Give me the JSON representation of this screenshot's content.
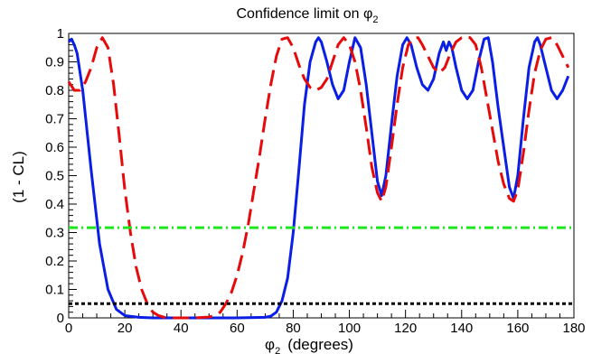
{
  "chart_data": {
    "type": "line",
    "title": {
      "text": "Confidence limit on φ",
      "sub": "2"
    },
    "xlabel": {
      "symbol": "φ",
      "sub": "2",
      "rest": "(degrees)"
    },
    "ylabel": "(1 - CL)",
    "xlim": [
      0,
      180
    ],
    "ylim": [
      0,
      1
    ],
    "xticks": [
      0,
      20,
      40,
      60,
      80,
      100,
      120,
      140,
      160,
      180
    ],
    "yticks": [
      0,
      0.1,
      0.2,
      0.3,
      0.4,
      0.5,
      0.6,
      0.7,
      0.8,
      0.9,
      1
    ],
    "ytick_labels": [
      "0",
      "0.1",
      "0.2",
      "0.3",
      "0.4",
      "0.5",
      "0.6",
      "0.7",
      "0.8",
      "0.9",
      "1"
    ],
    "grid": false,
    "series": [
      {
        "style": "solid",
        "color": "#0a1ee6",
        "x": [
          0,
          1,
          2,
          3,
          5,
          8,
          11,
          14,
          17,
          20,
          25,
          30,
          40,
          50,
          60,
          70,
          72,
          74,
          76,
          78,
          80,
          82,
          84,
          86,
          88,
          89,
          90,
          92,
          94,
          96,
          98,
          100,
          102,
          104,
          106,
          108,
          110,
          111.5,
          113,
          115,
          117,
          119,
          120.5,
          122,
          124,
          126,
          128,
          130,
          132,
          133.5,
          134.5,
          135.5,
          136.5,
          138,
          140,
          142,
          144,
          146,
          148,
          149.5,
          151,
          153,
          155,
          157,
          158.5,
          160,
          162,
          164,
          166,
          167,
          168,
          170,
          172,
          174,
          176,
          178
        ],
        "y": [
          0.97,
          0.98,
          0.96,
          0.93,
          0.8,
          0.52,
          0.26,
          0.1,
          0.03,
          0.008,
          0.002,
          0,
          0,
          0,
          0,
          0.002,
          0.006,
          0.02,
          0.06,
          0.14,
          0.3,
          0.52,
          0.75,
          0.9,
          0.97,
          0.985,
          0.97,
          0.9,
          0.82,
          0.77,
          0.8,
          0.9,
          0.985,
          0.95,
          0.82,
          0.65,
          0.48,
          0.43,
          0.5,
          0.68,
          0.85,
          0.96,
          0.985,
          0.96,
          0.88,
          0.82,
          0.8,
          0.84,
          0.93,
          0.97,
          0.94,
          0.97,
          0.95,
          0.88,
          0.8,
          0.77,
          0.8,
          0.9,
          0.98,
          0.985,
          0.9,
          0.74,
          0.6,
          0.46,
          0.42,
          0.5,
          0.7,
          0.88,
          0.97,
          0.985,
          0.96,
          0.88,
          0.8,
          0.77,
          0.8,
          0.85
        ]
      },
      {
        "style": "dashed",
        "color": "#e60a0a",
        "x": [
          0,
          2,
          4,
          6,
          8,
          10,
          12,
          14,
          16,
          18,
          20,
          22,
          24,
          26,
          28,
          30,
          32,
          34,
          36,
          38,
          40,
          45,
          50,
          52,
          54,
          56,
          58,
          60,
          62,
          64,
          66,
          68,
          70,
          72,
          74,
          76,
          78,
          80,
          82,
          84,
          86,
          88,
          90,
          92,
          94,
          96,
          98,
          100,
          102,
          104,
          106,
          108,
          110,
          111.5,
          113,
          115,
          117,
          119,
          121,
          123,
          124.5,
          126,
          128,
          130,
          132,
          134,
          136,
          138,
          140,
          141.5,
          143,
          145,
          147,
          149,
          151,
          153,
          155,
          157,
          158.5,
          160,
          162,
          164,
          166,
          168,
          170,
          172,
          174,
          176,
          178
        ],
        "y": [
          0.83,
          0.8,
          0.8,
          0.83,
          0.88,
          0.95,
          0.985,
          0.95,
          0.82,
          0.64,
          0.45,
          0.3,
          0.18,
          0.1,
          0.05,
          0.02,
          0.008,
          0.002,
          0,
          0,
          0,
          0,
          0.003,
          0.008,
          0.02,
          0.05,
          0.09,
          0.15,
          0.23,
          0.33,
          0.45,
          0.57,
          0.7,
          0.82,
          0.92,
          0.98,
          0.985,
          0.95,
          0.89,
          0.84,
          0.81,
          0.8,
          0.81,
          0.84,
          0.9,
          0.96,
          0.985,
          0.96,
          0.9,
          0.8,
          0.67,
          0.53,
          0.44,
          0.41,
          0.46,
          0.6,
          0.75,
          0.88,
          0.96,
          0.985,
          0.985,
          0.96,
          0.92,
          0.88,
          0.86,
          0.88,
          0.93,
          0.97,
          0.985,
          0.99,
          0.985,
          0.96,
          0.88,
          0.77,
          0.66,
          0.55,
          0.47,
          0.42,
          0.41,
          0.45,
          0.58,
          0.73,
          0.86,
          0.94,
          0.98,
          0.985,
          0.96,
          0.92,
          0.88
        ]
      },
      {
        "style": "dashdot",
        "color": "#1ee61e",
        "x": [
          0,
          180
        ],
        "y": [
          0.317,
          0.317
        ]
      },
      {
        "style": "dotted",
        "color": "#000000",
        "x": [
          0,
          180
        ],
        "y": [
          0.05,
          0.05
        ]
      }
    ]
  }
}
